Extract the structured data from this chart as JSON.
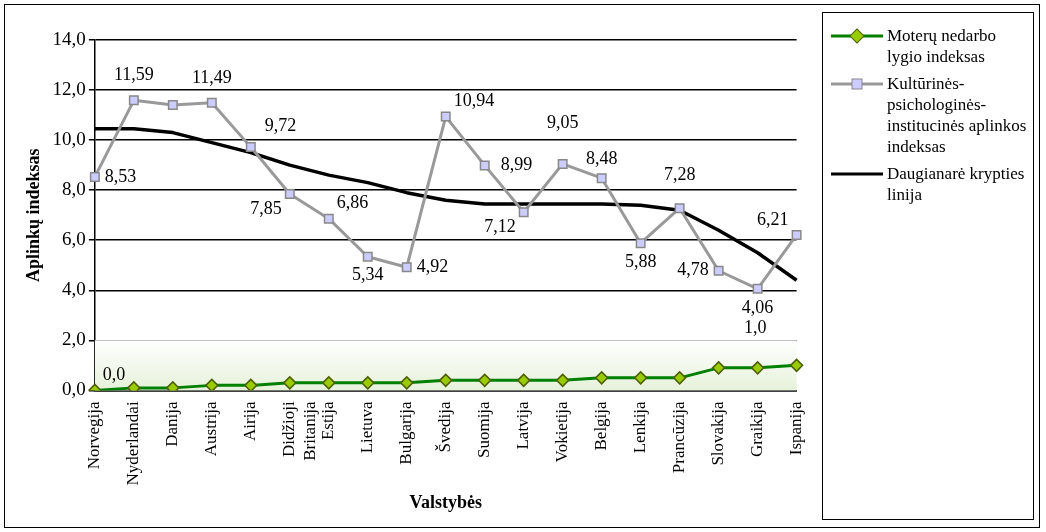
{
  "chart_data": {
    "type": "line",
    "xlabel": "Valstybės",
    "ylabel": "Aplinkų indeksas",
    "categories": [
      "Norvegija",
      "Nyderlandai",
      "Danija",
      "Austrija",
      "Airija",
      "Didžioji Britanija",
      "Estija",
      "Lietuva",
      "Bulgarija",
      "Švedija",
      "Suomija",
      "Latvija",
      "Vokietija",
      "Belgija",
      "Lenkija",
      "Prancūzija",
      "Slovakija",
      "Graikija",
      "Ispanija"
    ],
    "series": [
      {
        "name": "Moterų nedarbo lygio indeksas",
        "color": "#008000",
        "marker": "diamond",
        "values": [
          0,
          0.1,
          0.1,
          0.2,
          0.2,
          0.3,
          0.3,
          0.3,
          0.3,
          0.4,
          0.4,
          0.4,
          0.4,
          0.5,
          0.5,
          0.5,
          0.9,
          0.9,
          1.0
        ],
        "value_labels": [
          "0,0",
          null,
          null,
          null,
          null,
          null,
          null,
          null,
          null,
          null,
          null,
          null,
          null,
          null,
          null,
          null,
          null,
          null,
          "1,0"
        ]
      },
      {
        "name": "Kultūrinės-psichologinės-institucinės aplinkos indeksas",
        "color": "#999999",
        "marker": "square",
        "values": [
          8.53,
          11.59,
          11.4,
          11.49,
          9.72,
          7.85,
          6.86,
          5.34,
          4.92,
          10.94,
          8.99,
          7.12,
          9.05,
          8.48,
          5.88,
          7.28,
          4.78,
          4.06,
          6.21
        ],
        "value_labels": [
          "8,53",
          "11,59",
          null,
          "11,49",
          "9,72",
          "7,85",
          "6,86",
          "5,34",
          "4,92",
          "10,94",
          "8,99",
          "7,12",
          "9,05",
          "8,48",
          "5,88",
          "7,28",
          "4,78",
          "4,06",
          "6,21"
        ]
      },
      {
        "name": "Daugianarė krypties linija",
        "color": "#000000",
        "marker": "none",
        "values": [
          10.45,
          10.45,
          10.3,
          9.9,
          9.5,
          9.0,
          8.6,
          8.3,
          7.9,
          7.6,
          7.45,
          7.45,
          7.45,
          7.45,
          7.4,
          7.2,
          6.4,
          5.5,
          4.4
        ]
      }
    ],
    "ylim": [
      0,
      14
    ],
    "yticks": [
      {
        "value": 0,
        "label": "0,0"
      },
      {
        "value": 2,
        "label": "2,0"
      },
      {
        "value": 4,
        "label": "4,0"
      },
      {
        "value": 6,
        "label": "6,0"
      },
      {
        "value": 8,
        "label": "8,0"
      },
      {
        "value": 10,
        "label": "10,0"
      },
      {
        "value": 12,
        "label": "12,0"
      },
      {
        "value": 14,
        "label": "14,0"
      }
    ],
    "bands": [
      {
        "axis": "y",
        "from": 0,
        "to": 2,
        "color": "#e6f2da"
      }
    ],
    "grid": "y",
    "legend": "right",
    "line_style": "solid"
  }
}
